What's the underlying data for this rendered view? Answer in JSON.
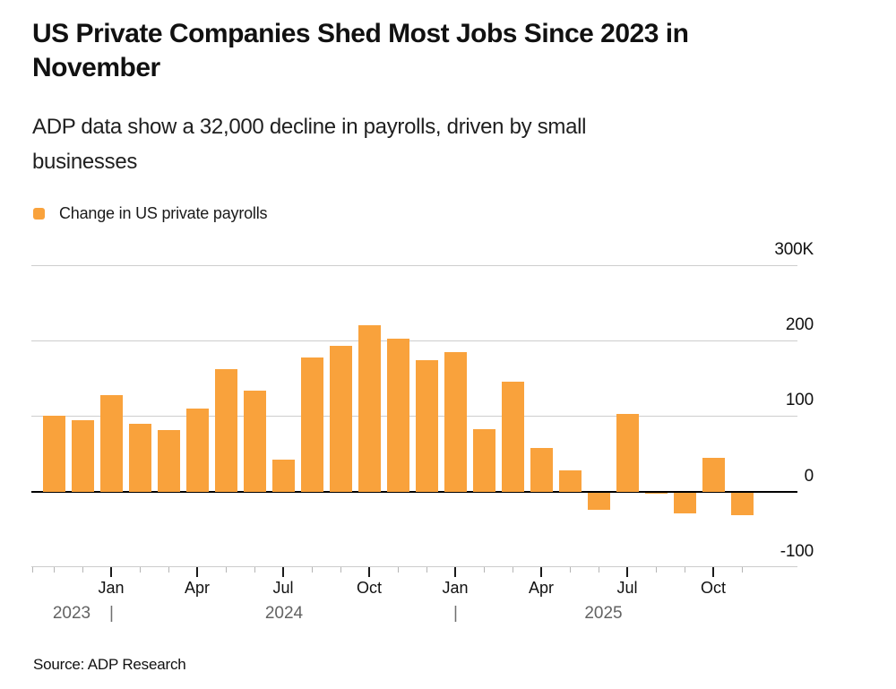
{
  "header": {
    "title_lines": [
      "US Private Companies Shed Most Jobs Since 2023 in",
      "November"
    ],
    "subtitle_lines": [
      "ADP data show a 32,000 decline in payrolls, driven by small",
      "businesses"
    ]
  },
  "legend": {
    "label": "Change in US private payrolls",
    "swatch_color": "#F9A23C"
  },
  "chart_data": {
    "type": "bar",
    "title": "US Private Companies Shed Most Jobs Since 2023 in November",
    "subtitle": "ADP data show a 32,000 decline in payrolls, driven by small businesses",
    "series_name": "Change in US private payrolls",
    "unit": "thousands of jobs (K)",
    "bar_color": "#F9A23C",
    "grid": true,
    "legend_position": "top-left",
    "ylim": [
      -100,
      300
    ],
    "categories": [
      "Nov 2023",
      "Dec 2023",
      "Jan 2024",
      "Feb 2024",
      "Mar 2024",
      "Apr 2024",
      "May 2024",
      "Jun 2024",
      "Jul 2024",
      "Aug 2024",
      "Sep 2024",
      "Oct 2024",
      "Nov 2024",
      "Dec 2024",
      "Jan 2025",
      "Feb 2025",
      "Mar 2025",
      "Apr 2025",
      "May 2025",
      "Jun 2025",
      "Jul 2025",
      "Aug 2025",
      "Sep 2025",
      "Oct 2025",
      "Nov 2025"
    ],
    "values": [
      100,
      94,
      128,
      90,
      81,
      110,
      162,
      134,
      42,
      178,
      193,
      220,
      202,
      174,
      185,
      83,
      145,
      58,
      28,
      -24,
      103,
      -3,
      -29,
      45,
      -32
    ],
    "y_ticks": [
      {
        "label": "300K",
        "value": 300
      },
      {
        "label": "200",
        "value": 200
      },
      {
        "label": "100",
        "value": 100
      },
      {
        "label": "0",
        "value": 0
      },
      {
        "label": "-100",
        "value": -100
      }
    ],
    "x_major_ticks": [
      {
        "label": "Jan",
        "index": 2
      },
      {
        "label": "Apr",
        "index": 5
      },
      {
        "label": "Jul",
        "index": 8
      },
      {
        "label": "Oct",
        "index": 11
      },
      {
        "label": "Jan",
        "index": 14
      },
      {
        "label": "Apr",
        "index": 17
      },
      {
        "label": "Jul",
        "index": 20
      },
      {
        "label": "Oct",
        "index": 23
      }
    ],
    "year_row": [
      {
        "kind": "year",
        "label": "2023"
      },
      {
        "kind": "separator",
        "label": "|"
      },
      {
        "kind": "year",
        "label": "2024"
      },
      {
        "kind": "separator",
        "label": "|"
      },
      {
        "kind": "year",
        "label": "2025"
      }
    ]
  },
  "footer": {
    "source": "Source: ADP Research"
  }
}
